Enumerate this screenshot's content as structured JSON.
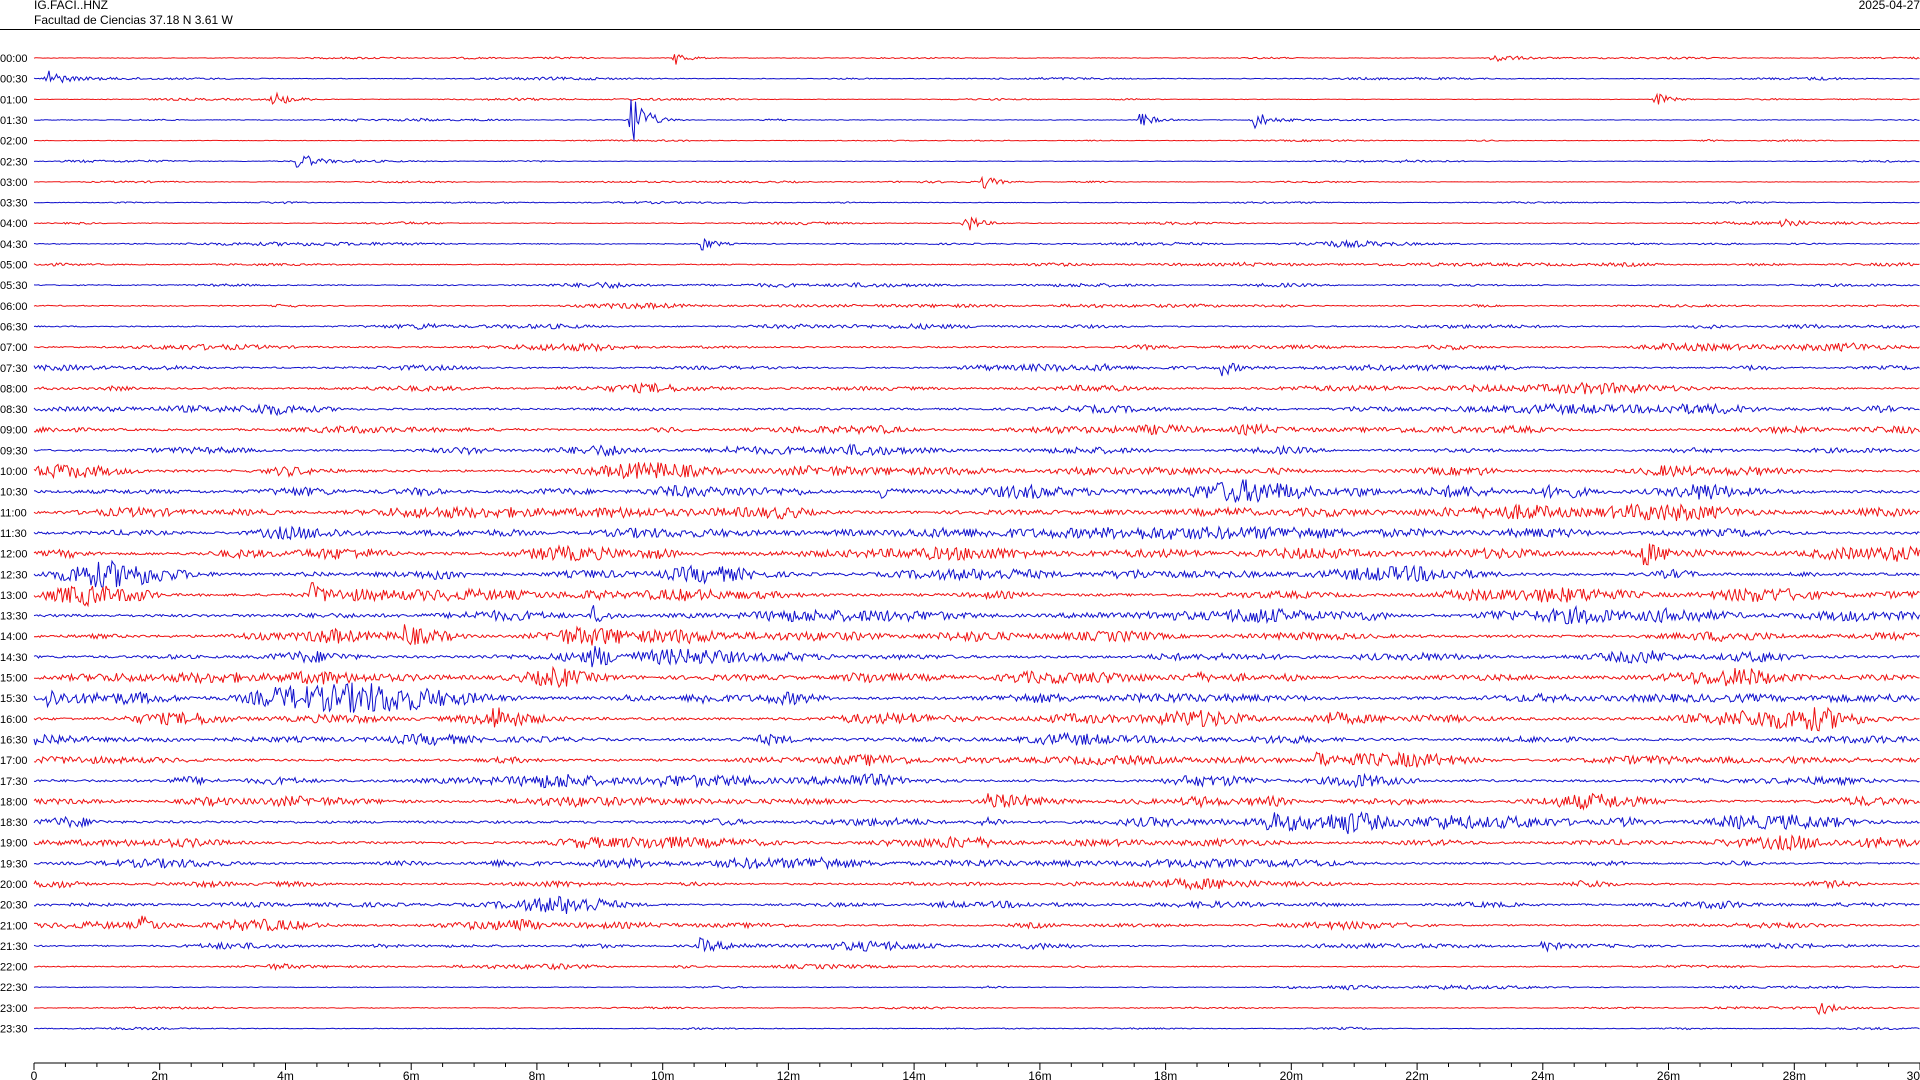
{
  "header": {
    "station": "IG.FACI..HNZ",
    "location": "Facultad de Ciencias  37.18 N 3.61 W",
    "date": "2025-04-27"
  },
  "colors": {
    "trace_even": "#ee1111",
    "trace_odd": "#1111cc",
    "axis": "#000000"
  },
  "chart_data": {
    "type": "line",
    "plot_kind": "helicorder",
    "row_labels": [
      "00:00",
      "00:30",
      "01:00",
      "01:30",
      "02:00",
      "02:30",
      "03:00",
      "03:30",
      "04:00",
      "04:30",
      "05:00",
      "05:30",
      "06:00",
      "06:30",
      "07:00",
      "07:30",
      "08:00",
      "08:30",
      "09:00",
      "09:30",
      "10:00",
      "10:30",
      "11:00",
      "11:30",
      "12:00",
      "12:30",
      "13:00",
      "13:30",
      "14:00",
      "14:30",
      "15:00",
      "15:30",
      "16:00",
      "16:30",
      "17:00",
      "17:30",
      "18:00",
      "18:30",
      "19:00",
      "19:30",
      "20:00",
      "20:30",
      "21:00",
      "21:30",
      "22:00",
      "22:30",
      "23:00",
      "23:30"
    ],
    "xlim": [
      0,
      30
    ],
    "x_ticks": [
      "0",
      "2m",
      "4m",
      "6m",
      "8m",
      "10m",
      "12m",
      "14m",
      "16m",
      "18m",
      "20m",
      "22m",
      "24m",
      "26m",
      "28m",
      "30"
    ],
    "row_noise_level": [
      0.1,
      0.12,
      0.1,
      0.11,
      0.09,
      0.1,
      0.09,
      0.1,
      0.13,
      0.16,
      0.18,
      0.18,
      0.18,
      0.22,
      0.25,
      0.26,
      0.3,
      0.34,
      0.36,
      0.34,
      0.4,
      0.45,
      0.45,
      0.45,
      0.47,
      0.48,
      0.46,
      0.48,
      0.46,
      0.45,
      0.48,
      0.5,
      0.46,
      0.42,
      0.4,
      0.42,
      0.42,
      0.44,
      0.4,
      0.34,
      0.3,
      0.3,
      0.28,
      0.26,
      0.18,
      0.14,
      0.12,
      0.11
    ],
    "events": [
      {
        "row": "01:30",
        "minute": 9.5,
        "amplitude": 2.8
      },
      {
        "row": "00:00",
        "minute": 10.2,
        "amplitude": 0.6
      },
      {
        "row": "00:00",
        "minute": 23.2,
        "amplitude": 0.6
      },
      {
        "row": "00:30",
        "minute": 0.2,
        "amplitude": 0.9
      },
      {
        "row": "01:00",
        "minute": 3.8,
        "amplitude": 0.7
      },
      {
        "row": "01:00",
        "minute": 25.8,
        "amplitude": 0.6
      },
      {
        "row": "01:30",
        "minute": 17.6,
        "amplitude": 0.7
      },
      {
        "row": "01:30",
        "minute": 19.4,
        "amplitude": 0.9
      },
      {
        "row": "02:30",
        "minute": 4.2,
        "amplitude": 0.9
      },
      {
        "row": "03:00",
        "minute": 15.1,
        "amplitude": 0.6
      },
      {
        "row": "04:00",
        "minute": 14.8,
        "amplitude": 1.0
      },
      {
        "row": "04:00",
        "minute": 27.8,
        "amplitude": 0.6
      },
      {
        "row": "04:30",
        "minute": 10.6,
        "amplitude": 0.7
      },
      {
        "row": "07:30",
        "minute": 18.9,
        "amplitude": 0.7
      },
      {
        "row": "10:30",
        "minute": 13.5,
        "amplitude": 0.9
      },
      {
        "row": "12:00",
        "minute": 25.6,
        "amplitude": 1.0
      },
      {
        "row": "13:00",
        "minute": 4.4,
        "amplitude": 1.0
      },
      {
        "row": "13:30",
        "minute": 8.9,
        "amplitude": 0.8
      },
      {
        "row": "14:00",
        "minute": 5.9,
        "amplitude": 0.8
      },
      {
        "row": "14:30",
        "minute": 8.9,
        "amplitude": 0.8
      },
      {
        "row": "15:30",
        "minute": 0.2,
        "amplitude": 0.8
      },
      {
        "row": "16:00",
        "minute": 7.3,
        "amplitude": 0.8
      },
      {
        "row": "17:00",
        "minute": 20.4,
        "amplitude": 0.8
      },
      {
        "row": "18:00",
        "minute": 15.2,
        "amplitude": 0.8
      },
      {
        "row": "18:30",
        "minute": 19.6,
        "amplitude": 0.8
      },
      {
        "row": "21:00",
        "minute": 1.7,
        "amplitude": 0.8
      },
      {
        "row": "21:00",
        "minute": 7.6,
        "amplitude": 0.7
      },
      {
        "row": "21:30",
        "minute": 10.6,
        "amplitude": 0.6
      },
      {
        "row": "21:30",
        "minute": 24.0,
        "amplitude": 0.6
      },
      {
        "row": "23:00",
        "minute": 28.4,
        "amplitude": 0.7
      }
    ]
  }
}
